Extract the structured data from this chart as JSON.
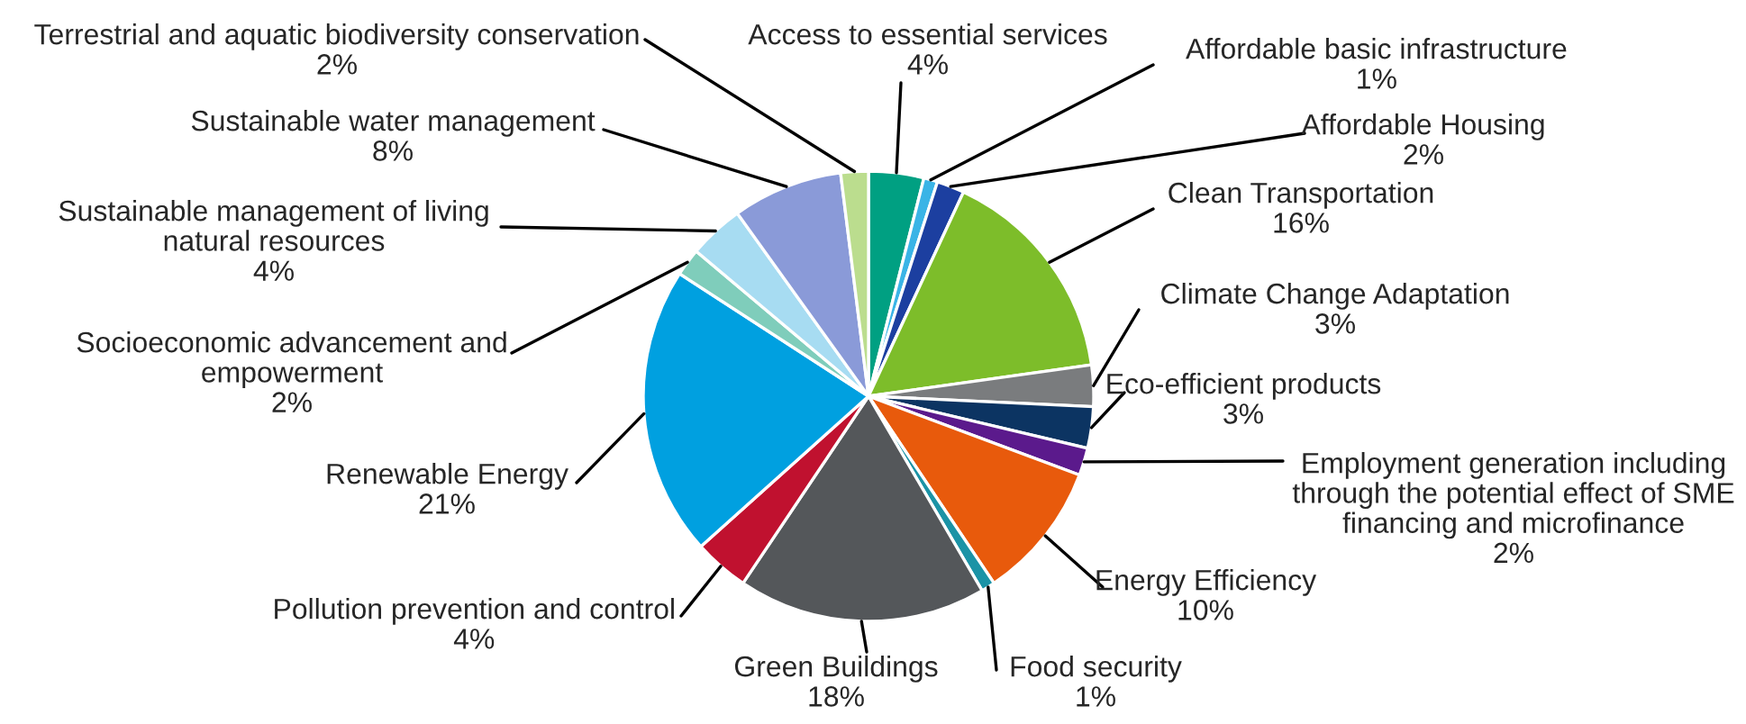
{
  "chart_data": {
    "type": "pie",
    "categories": [
      "Access to essential services",
      "Affordable basic infrastructure",
      "Affordable Housing",
      "Clean Transportation",
      "Climate Change Adaptation",
      "Eco-efficient products",
      "Employment generation including\nthrough the potential effect of SME\nfinancing and microfinance",
      "Energy Efficiency",
      "Food security",
      "Green Buildings",
      "Pollution prevention and control",
      "Renewable Energy",
      "Socioeconomic advancement and\nempowerment",
      "Sustainable management of living\nnatural resources",
      "Sustainable water management",
      "Terrestrial and aquatic biodiversity conservation"
    ],
    "values": [
      4,
      1,
      2,
      16,
      3,
      3,
      2,
      10,
      1,
      18,
      4,
      21,
      2,
      4,
      8,
      2
    ],
    "value_labels": [
      "4%",
      "1%",
      "2%",
      "16%",
      "3%",
      "3%",
      "2%",
      "10%",
      "1%",
      "18%",
      "4%",
      "21%",
      "2%",
      "4%",
      "8%",
      "2%"
    ],
    "colors": [
      "#00a082",
      "#3ab4e6",
      "#1c3fa0",
      "#7dbd2a",
      "#7a7c7e",
      "#0c3462",
      "#5b1a8c",
      "#e85a0c",
      "#1b93a6",
      "#54575a",
      "#c0112f",
      "#00a0e0",
      "#7fcdbb",
      "#a7dcf2",
      "#8a9ad8",
      "#bbdd8e"
    ],
    "legend": false
  }
}
